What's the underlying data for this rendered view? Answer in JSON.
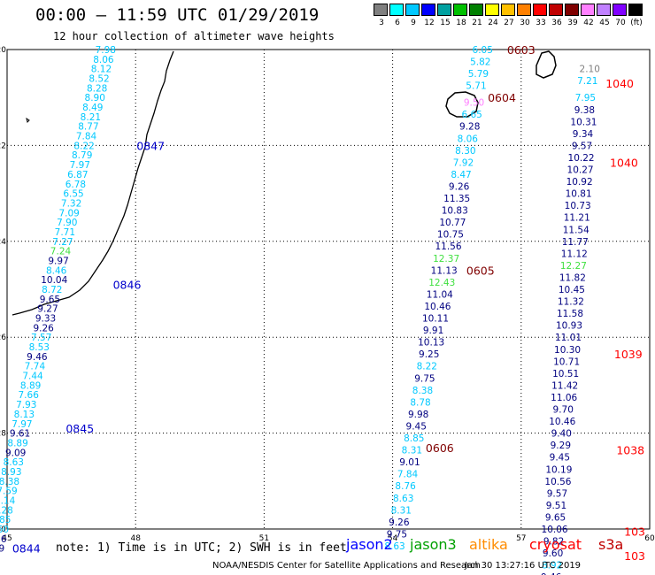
{
  "header": {
    "title": "00:00 – 11:59 UTC 01/29/2019",
    "subtitle": "12 hour collection of altimeter wave heights"
  },
  "colorbar": {
    "labels": [
      "3",
      "6",
      "9",
      "12",
      "15",
      "18",
      "21",
      "24",
      "27",
      "30",
      "33",
      "36",
      "39",
      "42",
      "45",
      "70",
      "(ft)"
    ],
    "colors": [
      "#808080",
      "#00ffff",
      "#00c8ff",
      "#0000ff",
      "#00a0a0",
      "#00c000",
      "#008000",
      "#ffff00",
      "#ffc000",
      "#ff8000",
      "#ff0000",
      "#c00000",
      "#800000",
      "#ff80ff",
      "#c080ff",
      "#8000ff",
      "#000000"
    ]
  },
  "axes": {
    "x_ticks": [
      "45",
      "48",
      "51",
      "54",
      "57",
      "60"
    ],
    "y_ticks": [
      "-20",
      "-22",
      "-24",
      "-26",
      "-28",
      "-30"
    ],
    "x_range": [
      45,
      60
    ],
    "y_range": [
      -30,
      -20
    ]
  },
  "footer": {
    "note": "note: 1) Time is in UTC; 2) SWH is in feet",
    "credit": "NOAA/NESDIS Center for Satellite Applications and Research",
    "timestamp": "Jan 30 13:27:16 UTC 2019",
    "satellites": [
      {
        "name": "jason2",
        "color": "#0000ff"
      },
      {
        "name": "jason3",
        "color": "#00a000"
      },
      {
        "name": "altika",
        "color": "#ff8c00"
      },
      {
        "name": "cryosat",
        "color": "#ff0000"
      },
      {
        "name": "s3a",
        "color": "#c00000"
      }
    ]
  },
  "colors": {
    "c_cyan": "#00c8ff",
    "c_blue": "#0000ff",
    "c_navy": "#000080",
    "c_green": "#40e040",
    "c_gray": "#808080",
    "c_pink": "#ff80ff",
    "time_blue": "#0000cc",
    "time_dred": "#800000",
    "time_red": "#ff0000"
  },
  "track_labels": [
    {
      "lon": 47.3,
      "lat": -20.0,
      "v": "7.98",
      "c": "c_cyan"
    },
    {
      "lon": 47.25,
      "lat": -20.2,
      "v": "8.06",
      "c": "c_cyan"
    },
    {
      "lon": 47.2,
      "lat": -20.4,
      "v": "8.12",
      "c": "c_cyan"
    },
    {
      "lon": 47.15,
      "lat": -20.6,
      "v": "8.52",
      "c": "c_cyan"
    },
    {
      "lon": 47.1,
      "lat": -20.8,
      "v": "8.28",
      "c": "c_cyan"
    },
    {
      "lon": 47.05,
      "lat": -21.0,
      "v": "8.90",
      "c": "c_cyan"
    },
    {
      "lon": 47.0,
      "lat": -21.2,
      "v": "8.49",
      "c": "c_cyan"
    },
    {
      "lon": 46.95,
      "lat": -21.4,
      "v": "8.21",
      "c": "c_cyan"
    },
    {
      "lon": 46.9,
      "lat": -21.6,
      "v": "8.77",
      "c": "c_cyan"
    },
    {
      "lon": 46.85,
      "lat": -21.8,
      "v": "7.84",
      "c": "c_cyan"
    },
    {
      "lon": 46.8,
      "lat": -22.0,
      "v": "8.22",
      "c": "c_cyan"
    },
    {
      "lon": 46.75,
      "lat": -22.2,
      "v": "8.79",
      "c": "c_cyan"
    },
    {
      "lon": 46.7,
      "lat": -22.4,
      "v": "7.97",
      "c": "c_cyan"
    },
    {
      "lon": 46.65,
      "lat": -22.6,
      "v": "6.87",
      "c": "c_cyan"
    },
    {
      "lon": 46.6,
      "lat": -22.8,
      "v": "6.78",
      "c": "c_cyan"
    },
    {
      "lon": 46.55,
      "lat": -23.0,
      "v": "6.55",
      "c": "c_cyan"
    },
    {
      "lon": 46.5,
      "lat": -23.2,
      "v": "7.32",
      "c": "c_cyan"
    },
    {
      "lon": 46.45,
      "lat": -23.4,
      "v": "7.09",
      "c": "c_cyan"
    },
    {
      "lon": 46.4,
      "lat": -23.6,
      "v": "7.90",
      "c": "c_cyan"
    },
    {
      "lon": 46.35,
      "lat": -23.8,
      "v": "7.71",
      "c": "c_cyan"
    },
    {
      "lon": 46.3,
      "lat": -24.0,
      "v": "7.27",
      "c": "c_cyan"
    },
    {
      "lon": 46.25,
      "lat": -24.2,
      "v": "7.24",
      "c": "c_green"
    },
    {
      "lon": 46.2,
      "lat": -24.4,
      "v": "9.97",
      "c": "c_navy"
    },
    {
      "lon": 46.15,
      "lat": -24.6,
      "v": "8.46",
      "c": "c_cyan"
    },
    {
      "lon": 46.1,
      "lat": -24.8,
      "v": "10.04",
      "c": "c_navy"
    },
    {
      "lon": 46.05,
      "lat": -25.0,
      "v": "8.72",
      "c": "c_cyan"
    },
    {
      "lon": 46.0,
      "lat": -25.2,
      "v": "9.65",
      "c": "c_navy"
    },
    {
      "lon": 45.95,
      "lat": -25.4,
      "v": "9.27",
      "c": "c_navy"
    },
    {
      "lon": 45.9,
      "lat": -25.6,
      "v": "9.33",
      "c": "c_navy"
    },
    {
      "lon": 45.85,
      "lat": -25.8,
      "v": "9.26",
      "c": "c_navy"
    },
    {
      "lon": 45.8,
      "lat": -26.0,
      "v": "7.57",
      "c": "c_cyan"
    },
    {
      "lon": 45.75,
      "lat": -26.2,
      "v": "8.53",
      "c": "c_cyan"
    },
    {
      "lon": 45.7,
      "lat": -26.4,
      "v": "9.46",
      "c": "c_navy"
    },
    {
      "lon": 45.65,
      "lat": -26.6,
      "v": "7.74",
      "c": "c_cyan"
    },
    {
      "lon": 45.6,
      "lat": -26.8,
      "v": "7.44",
      "c": "c_cyan"
    },
    {
      "lon": 45.55,
      "lat": -27.0,
      "v": "8.89",
      "c": "c_cyan"
    },
    {
      "lon": 45.5,
      "lat": -27.2,
      "v": "7.66",
      "c": "c_cyan"
    },
    {
      "lon": 45.45,
      "lat": -27.4,
      "v": "7.93",
      "c": "c_cyan"
    },
    {
      "lon": 45.4,
      "lat": -27.6,
      "v": "8.13",
      "c": "c_cyan"
    },
    {
      "lon": 45.35,
      "lat": -27.8,
      "v": "7.97",
      "c": "c_cyan"
    },
    {
      "lon": 45.3,
      "lat": -28.0,
      "v": "9.61",
      "c": "c_navy"
    },
    {
      "lon": 45.25,
      "lat": -28.2,
      "v": "8.89",
      "c": "c_cyan"
    },
    {
      "lon": 45.2,
      "lat": -28.4,
      "v": "9.09",
      "c": "c_navy"
    },
    {
      "lon": 45.15,
      "lat": -28.6,
      "v": "8.63",
      "c": "c_cyan"
    },
    {
      "lon": 45.1,
      "lat": -28.8,
      "v": "8.93",
      "c": "c_cyan"
    },
    {
      "lon": 45.05,
      "lat": -29.0,
      "v": "8.38",
      "c": "c_cyan"
    },
    {
      "lon": 45.0,
      "lat": -29.2,
      "v": "7.59",
      "c": "c_cyan"
    },
    {
      "lon": 44.95,
      "lat": -29.4,
      "v": "7.14",
      "c": "c_cyan"
    },
    {
      "lon": 44.9,
      "lat": -29.6,
      "v": "8.28",
      "c": "c_cyan"
    },
    {
      "lon": 44.85,
      "lat": -29.8,
      "v": "8.85",
      "c": "c_cyan"
    },
    {
      "lon": 44.8,
      "lat": -30.0,
      "v": "8.60",
      "c": "c_cyan"
    },
    {
      "lon": 44.75,
      "lat": -30.2,
      "v": "9.36",
      "c": "c_navy"
    },
    {
      "lon": 44.7,
      "lat": -30.4,
      "v": "9.29",
      "c": "c_navy"
    },
    {
      "lon": 56.1,
      "lat": -20.0,
      "v": "6.05",
      "c": "c_cyan"
    },
    {
      "lon": 56.05,
      "lat": -20.25,
      "v": "5.82",
      "c": "c_cyan"
    },
    {
      "lon": 56.0,
      "lat": -20.5,
      "v": "5.79",
      "c": "c_cyan"
    },
    {
      "lon": 55.95,
      "lat": -20.75,
      "v": "5.71",
      "c": "c_cyan"
    },
    {
      "lon": 55.9,
      "lat": -21.1,
      "v": "9.50",
      "c": "c_pink"
    },
    {
      "lon": 55.85,
      "lat": -21.35,
      "v": "6.65",
      "c": "c_cyan"
    },
    {
      "lon": 55.8,
      "lat": -21.6,
      "v": "9.28",
      "c": "c_navy"
    },
    {
      "lon": 55.75,
      "lat": -21.85,
      "v": "8.06",
      "c": "c_cyan"
    },
    {
      "lon": 55.7,
      "lat": -22.1,
      "v": "8.30",
      "c": "c_cyan"
    },
    {
      "lon": 55.65,
      "lat": -22.35,
      "v": "7.92",
      "c": "c_cyan"
    },
    {
      "lon": 55.6,
      "lat": -22.6,
      "v": "8.47",
      "c": "c_cyan"
    },
    {
      "lon": 55.55,
      "lat": -22.85,
      "v": "9.26",
      "c": "c_navy"
    },
    {
      "lon": 55.5,
      "lat": -23.1,
      "v": "11.35",
      "c": "c_navy"
    },
    {
      "lon": 55.45,
      "lat": -23.35,
      "v": "10.83",
      "c": "c_navy"
    },
    {
      "lon": 55.4,
      "lat": -23.6,
      "v": "10.77",
      "c": "c_navy"
    },
    {
      "lon": 55.35,
      "lat": -23.85,
      "v": "10.75",
      "c": "c_navy"
    },
    {
      "lon": 55.3,
      "lat": -24.1,
      "v": "11.56",
      "c": "c_navy"
    },
    {
      "lon": 55.25,
      "lat": -24.35,
      "v": "12.37",
      "c": "c_green"
    },
    {
      "lon": 55.2,
      "lat": -24.6,
      "v": "11.13",
      "c": "c_navy"
    },
    {
      "lon": 55.15,
      "lat": -24.85,
      "v": "12.43",
      "c": "c_green"
    },
    {
      "lon": 55.1,
      "lat": -25.1,
      "v": "11.04",
      "c": "c_navy"
    },
    {
      "lon": 55.05,
      "lat": -25.35,
      "v": "10.46",
      "c": "c_navy"
    },
    {
      "lon": 55.0,
      "lat": -25.6,
      "v": "10.11",
      "c": "c_navy"
    },
    {
      "lon": 54.95,
      "lat": -25.85,
      "v": "9.91",
      "c": "c_navy"
    },
    {
      "lon": 54.9,
      "lat": -26.1,
      "v": "10.13",
      "c": "c_navy"
    },
    {
      "lon": 54.85,
      "lat": -26.35,
      "v": "9.25",
      "c": "c_navy"
    },
    {
      "lon": 54.8,
      "lat": -26.6,
      "v": "8.22",
      "c": "c_cyan"
    },
    {
      "lon": 54.75,
      "lat": -26.85,
      "v": "9.75",
      "c": "c_navy"
    },
    {
      "lon": 54.7,
      "lat": -27.1,
      "v": "8.38",
      "c": "c_cyan"
    },
    {
      "lon": 54.65,
      "lat": -27.35,
      "v": "8.78",
      "c": "c_cyan"
    },
    {
      "lon": 54.6,
      "lat": -27.6,
      "v": "9.98",
      "c": "c_navy"
    },
    {
      "lon": 54.55,
      "lat": -27.85,
      "v": "9.45",
      "c": "c_navy"
    },
    {
      "lon": 54.5,
      "lat": -28.1,
      "v": "8.85",
      "c": "c_cyan"
    },
    {
      "lon": 54.45,
      "lat": -28.35,
      "v": "8.31",
      "c": "c_cyan"
    },
    {
      "lon": 54.4,
      "lat": -28.6,
      "v": "9.01",
      "c": "c_navy"
    },
    {
      "lon": 54.35,
      "lat": -28.85,
      "v": "7.84",
      "c": "c_cyan"
    },
    {
      "lon": 54.3,
      "lat": -29.1,
      "v": "8.76",
      "c": "c_cyan"
    },
    {
      "lon": 54.25,
      "lat": -29.35,
      "v": "8.63",
      "c": "c_cyan"
    },
    {
      "lon": 54.2,
      "lat": -29.6,
      "v": "8.31",
      "c": "c_cyan"
    },
    {
      "lon": 54.15,
      "lat": -29.85,
      "v": "9.26",
      "c": "c_navy"
    },
    {
      "lon": 54.1,
      "lat": -30.1,
      "v": "9.75",
      "c": "c_navy"
    },
    {
      "lon": 54.05,
      "lat": -30.35,
      "v": "8.63",
      "c": "c_cyan"
    },
    {
      "lon": 58.6,
      "lat": -20.4,
      "v": "2.10",
      "c": "c_gray"
    },
    {
      "lon": 58.55,
      "lat": -20.65,
      "v": "7.21",
      "c": "c_cyan"
    },
    {
      "lon": 58.5,
      "lat": -21.0,
      "v": "7.95",
      "c": "c_cyan"
    },
    {
      "lon": 58.48,
      "lat": -21.25,
      "v": "9.38",
      "c": "c_navy"
    },
    {
      "lon": 58.46,
      "lat": -21.5,
      "v": "10.31",
      "c": "c_navy"
    },
    {
      "lon": 58.44,
      "lat": -21.75,
      "v": "9.34",
      "c": "c_navy"
    },
    {
      "lon": 58.42,
      "lat": -22.0,
      "v": "9.57",
      "c": "c_navy"
    },
    {
      "lon": 58.4,
      "lat": -22.25,
      "v": "10.22",
      "c": "c_navy"
    },
    {
      "lon": 58.38,
      "lat": -22.5,
      "v": "10.27",
      "c": "c_navy"
    },
    {
      "lon": 58.36,
      "lat": -22.75,
      "v": "10.92",
      "c": "c_navy"
    },
    {
      "lon": 58.34,
      "lat": -23.0,
      "v": "10.81",
      "c": "c_navy"
    },
    {
      "lon": 58.32,
      "lat": -23.25,
      "v": "10.73",
      "c": "c_navy"
    },
    {
      "lon": 58.3,
      "lat": -23.5,
      "v": "11.21",
      "c": "c_navy"
    },
    {
      "lon": 58.28,
      "lat": -23.75,
      "v": "11.54",
      "c": "c_navy"
    },
    {
      "lon": 58.26,
      "lat": -24.0,
      "v": "11.77",
      "c": "c_navy"
    },
    {
      "lon": 58.24,
      "lat": -24.25,
      "v": "11.12",
      "c": "c_navy"
    },
    {
      "lon": 58.22,
      "lat": -24.5,
      "v": "12.27",
      "c": "c_green"
    },
    {
      "lon": 58.2,
      "lat": -24.75,
      "v": "11.82",
      "c": "c_navy"
    },
    {
      "lon": 58.18,
      "lat": -25.0,
      "v": "10.45",
      "c": "c_navy"
    },
    {
      "lon": 58.16,
      "lat": -25.25,
      "v": "11.32",
      "c": "c_navy"
    },
    {
      "lon": 58.14,
      "lat": -25.5,
      "v": "11.58",
      "c": "c_navy"
    },
    {
      "lon": 58.12,
      "lat": -25.75,
      "v": "10.93",
      "c": "c_navy"
    },
    {
      "lon": 58.1,
      "lat": -26.0,
      "v": "11.01",
      "c": "c_navy"
    },
    {
      "lon": 58.08,
      "lat": -26.25,
      "v": "10.30",
      "c": "c_navy"
    },
    {
      "lon": 58.06,
      "lat": -26.5,
      "v": "10.71",
      "c": "c_navy"
    },
    {
      "lon": 58.04,
      "lat": -26.75,
      "v": "10.51",
      "c": "c_navy"
    },
    {
      "lon": 58.02,
      "lat": -27.0,
      "v": "11.42",
      "c": "c_navy"
    },
    {
      "lon": 58.0,
      "lat": -27.25,
      "v": "11.06",
      "c": "c_navy"
    },
    {
      "lon": 57.98,
      "lat": -27.5,
      "v": "9.70",
      "c": "c_navy"
    },
    {
      "lon": 57.96,
      "lat": -27.75,
      "v": "10.46",
      "c": "c_navy"
    },
    {
      "lon": 57.94,
      "lat": -28.0,
      "v": "9.40",
      "c": "c_navy"
    },
    {
      "lon": 57.92,
      "lat": -28.25,
      "v": "9.29",
      "c": "c_navy"
    },
    {
      "lon": 57.9,
      "lat": -28.5,
      "v": "9.45",
      "c": "c_navy"
    },
    {
      "lon": 57.88,
      "lat": -28.75,
      "v": "10.19",
      "c": "c_navy"
    },
    {
      "lon": 57.86,
      "lat": -29.0,
      "v": "10.56",
      "c": "c_navy"
    },
    {
      "lon": 57.84,
      "lat": -29.25,
      "v": "9.57",
      "c": "c_navy"
    },
    {
      "lon": 57.82,
      "lat": -29.5,
      "v": "9.51",
      "c": "c_navy"
    },
    {
      "lon": 57.8,
      "lat": -29.75,
      "v": "9.65",
      "c": "c_navy"
    },
    {
      "lon": 57.78,
      "lat": -30.0,
      "v": "10.06",
      "c": "c_navy"
    },
    {
      "lon": 57.76,
      "lat": -30.25,
      "v": "9.82",
      "c": "c_navy"
    },
    {
      "lon": 57.74,
      "lat": -30.5,
      "v": "9.60",
      "c": "c_navy"
    },
    {
      "lon": 57.72,
      "lat": -30.75,
      "v": "8.92",
      "c": "c_cyan"
    },
    {
      "lon": 57.7,
      "lat": -31.0,
      "v": "9.46",
      "c": "c_navy"
    }
  ],
  "time_labels": [
    {
      "lon": 48.35,
      "lat": -22.0,
      "v": "0847",
      "c": "time_blue"
    },
    {
      "lon": 47.8,
      "lat": -24.9,
      "v": "0846",
      "c": "time_blue"
    },
    {
      "lon": 46.7,
      "lat": -27.9,
      "v": "0845",
      "c": "time_blue"
    },
    {
      "lon": 45.45,
      "lat": -30.4,
      "v": "0844",
      "c": "time_blue"
    },
    {
      "lon": 57.0,
      "lat": -20.0,
      "v": "0603",
      "c": "time_dred"
    },
    {
      "lon": 56.55,
      "lat": -21.0,
      "v": "0604",
      "c": "time_dred"
    },
    {
      "lon": 56.05,
      "lat": -24.6,
      "v": "0605",
      "c": "time_dred"
    },
    {
      "lon": 55.1,
      "lat": -28.3,
      "v": "0606",
      "c": "time_dred"
    },
    {
      "lon": 59.3,
      "lat": -20.7,
      "v": "1040",
      "c": "time_red"
    },
    {
      "lon": 59.4,
      "lat": -22.35,
      "v": "1040",
      "c": "time_red"
    },
    {
      "lon": 59.5,
      "lat": -26.35,
      "v": "1039",
      "c": "time_red"
    },
    {
      "lon": 59.55,
      "lat": -28.35,
      "v": "1038",
      "c": "time_red"
    },
    {
      "lon": 59.65,
      "lat": -30.05,
      "v": "103",
      "c": "time_red"
    },
    {
      "lon": 59.65,
      "lat": -30.55,
      "v": "103",
      "c": "time_red"
    }
  ]
}
